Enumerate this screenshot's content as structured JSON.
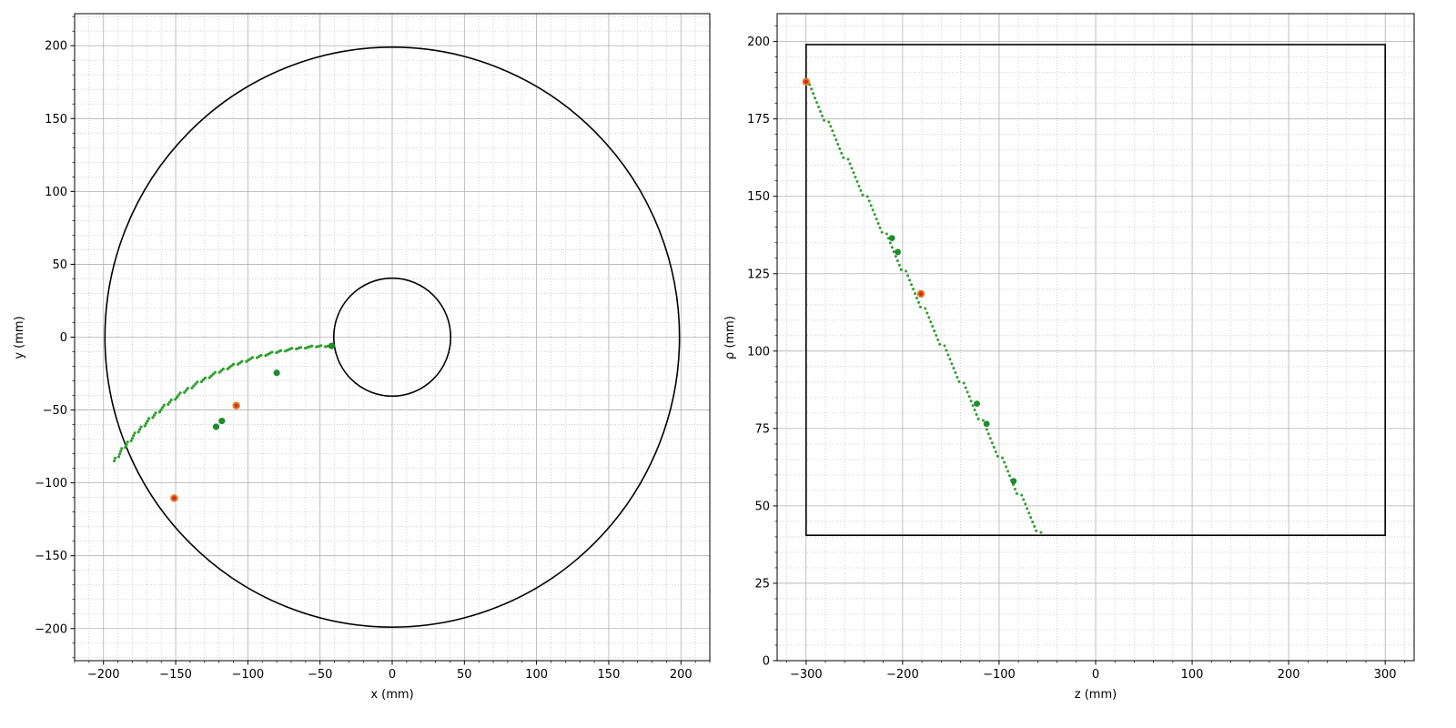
{
  "colors": {
    "major_grid": "#b0b0b0",
    "minor_grid": "#c8c8c8",
    "detector": "#000000",
    "track": "#2ca02c",
    "track_dark": "#1f8a2e",
    "endpoint": "#e07b20",
    "endpoint_dot": "#d62728"
  },
  "chart_data": [
    {
      "type": "scatter",
      "title": "",
      "xlabel": "x (mm)",
      "ylabel": "y (mm)",
      "xlim": [
        -220,
        220
      ],
      "ylim": [
        -222,
        222
      ],
      "xticks": [
        -200,
        -150,
        -100,
        -50,
        0,
        50,
        100,
        150,
        200
      ],
      "yticks": [
        -200,
        -150,
        -100,
        -50,
        0,
        50,
        100,
        150,
        200
      ],
      "grid": "major solid, minor dotted",
      "detector_circles": [
        {
          "cx": 0,
          "cy": 0,
          "r": 199
        },
        {
          "cx": 0,
          "cy": 0,
          "r": 40.5
        }
      ],
      "track_curve": {
        "cx": -41,
        "cy": -191,
        "r": 185,
        "phi_start_deg": 90.0,
        "phi_end_deg": 145.0,
        "n": 90
      },
      "hits_large": [
        {
          "x": -122,
          "y": -61.5
        },
        {
          "x": -118,
          "y": -57.5
        },
        {
          "x": -80,
          "y": -24.5
        },
        {
          "x": -42,
          "y": -6
        }
      ],
      "endpoints": [
        {
          "x": -151,
          "y": -110.5
        },
        {
          "x": -108,
          "y": -47
        }
      ]
    },
    {
      "type": "scatter",
      "title": "",
      "xlabel": "z (mm)",
      "ylabel": "ρ (mm)",
      "xlim": [
        -330,
        330
      ],
      "ylim": [
        0,
        209
      ],
      "xticks": [
        -300,
        -200,
        -100,
        0,
        100,
        200,
        300
      ],
      "yticks": [
        0,
        25,
        50,
        75,
        100,
        125,
        150,
        175,
        200
      ],
      "grid": "major solid, minor dotted",
      "detector_rect": {
        "z_min": -300,
        "z_max": 300,
        "rho_min": 40.5,
        "rho_max": 199
      },
      "track_line": {
        "z_start": -300,
        "rho_start": 187,
        "z_end": -58,
        "rho_end": 41,
        "n": 110
      },
      "hits_large": [
        {
          "x": -211,
          "y": 136.5
        },
        {
          "x": -205,
          "y": 132
        },
        {
          "x": -123,
          "y": 83
        },
        {
          "x": -113,
          "y": 76.5
        },
        {
          "x": -85,
          "y": 58
        }
      ],
      "endpoints": [
        {
          "x": -300,
          "y": 187
        },
        {
          "x": -181,
          "y": 118.5
        }
      ]
    }
  ]
}
